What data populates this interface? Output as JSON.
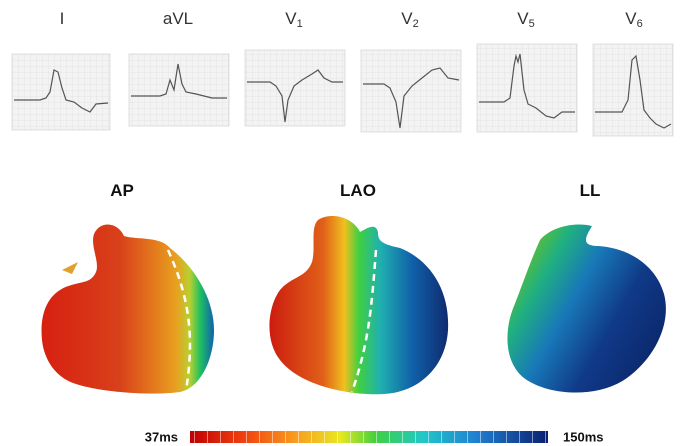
{
  "leads": [
    {
      "name": "I"
    },
    {
      "name": "aVL"
    },
    {
      "name": "V",
      "sub": "1"
    },
    {
      "name": "V",
      "sub": "2"
    },
    {
      "name": "V",
      "sub": "5"
    },
    {
      "name": "V",
      "sub": "6"
    }
  ],
  "views": [
    "AP",
    "LAO",
    "LL"
  ],
  "colorbar": {
    "min_label": "37ms",
    "max_label": "150ms"
  }
}
